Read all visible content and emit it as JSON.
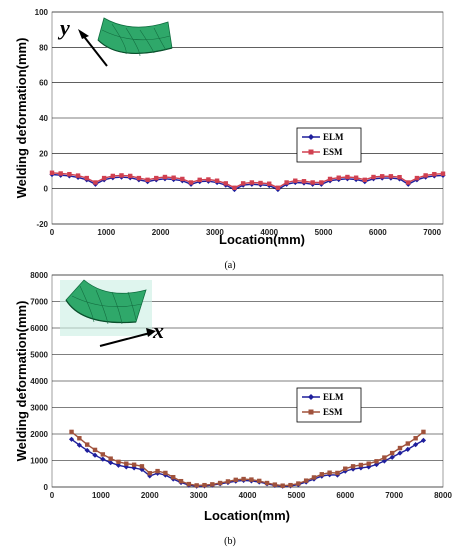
{
  "chart_data": [
    {
      "type": "line",
      "panel_label": "(a)",
      "xlabel": "Location(mm)",
      "ylabel": "Welding deformation(mm)",
      "xlim": [
        0,
        7200
      ],
      "ylim": [
        -20,
        100
      ],
      "xticks": [
        0,
        1000,
        2000,
        3000,
        4000,
        5000,
        6000,
        7000
      ],
      "yticks": [
        -20,
        0,
        20,
        40,
        60,
        80,
        100
      ],
      "inset_symbol": "y",
      "legend_position": "center-right",
      "x": [
        0,
        160,
        320,
        480,
        640,
        800,
        960,
        1120,
        1280,
        1440,
        1600,
        1760,
        1920,
        2080,
        2240,
        2400,
        2560,
        2720,
        2880,
        3040,
        3200,
        3360,
        3520,
        3680,
        3840,
        4000,
        4160,
        4320,
        4480,
        4640,
        4800,
        4960,
        5120,
        5280,
        5440,
        5600,
        5760,
        5920,
        6080,
        6240,
        6400,
        6560,
        6720,
        6880,
        7040,
        7200
      ],
      "series": [
        {
          "name": "ELM",
          "color": "#1f1f9c",
          "marker": "diamond",
          "values": [
            8,
            7.6,
            7.2,
            6.4,
            5,
            2.5,
            5,
            6.2,
            6.5,
            6.2,
            5,
            4,
            5,
            5.6,
            5.2,
            4.5,
            2.5,
            4,
            4.2,
            3.5,
            2,
            -0.5,
            2,
            2.5,
            2.2,
            1.8,
            -0.5,
            2.5,
            3.5,
            3.2,
            2.5,
            2.5,
            4.5,
            5.2,
            5.6,
            5.2,
            4,
            5.6,
            6,
            6,
            5.5,
            2.5,
            5,
            6.5,
            7.2,
            7.5
          ]
        },
        {
          "name": "ESM",
          "color": "#d04050",
          "marker": "square",
          "values": [
            9,
            8.6,
            8.2,
            7.4,
            6,
            3.5,
            6,
            7.2,
            7.5,
            7.2,
            6,
            5,
            6,
            6.6,
            6.2,
            5.5,
            3.5,
            5,
            5.2,
            4.5,
            3,
            0.5,
            3,
            3.5,
            3.2,
            2.8,
            0.5,
            3.5,
            4.5,
            4.2,
            3.5,
            3.5,
            5.5,
            6.2,
            6.6,
            6.2,
            5,
            6.6,
            7,
            7,
            6.5,
            3.5,
            6,
            7.5,
            8.2,
            8.5
          ]
        }
      ]
    },
    {
      "type": "line",
      "panel_label": "(b)",
      "xlabel": "Location(mm)",
      "ylabel": "Welding deformation(mm)",
      "xlim": [
        0,
        8000
      ],
      "ylim": [
        0,
        8000
      ],
      "xticks": [
        0,
        1000,
        2000,
        3000,
        4000,
        5000,
        6000,
        7000,
        8000
      ],
      "yticks": [
        0,
        1000,
        2000,
        3000,
        4000,
        5000,
        6000,
        7000,
        8000
      ],
      "inset_symbol": "x",
      "legend_position": "center-right",
      "x": [
        400,
        560,
        720,
        880,
        1040,
        1200,
        1360,
        1520,
        1680,
        1840,
        2000,
        2160,
        2320,
        2480,
        2640,
        2800,
        2960,
        3120,
        3280,
        3440,
        3600,
        3760,
        3920,
        4080,
        4240,
        4400,
        4560,
        4720,
        4880,
        5040,
        5200,
        5360,
        5520,
        5680,
        5840,
        6000,
        6160,
        6320,
        6480,
        6640,
        6800,
        6960,
        7120,
        7280,
        7440,
        7600
      ],
      "series": [
        {
          "name": "ELM",
          "color": "#1f1f9c",
          "marker": "diamond",
          "values": [
            1800,
            1580,
            1380,
            1200,
            1050,
            920,
            820,
            760,
            720,
            660,
            420,
            520,
            450,
            300,
            170,
            70,
            30,
            40,
            70,
            120,
            170,
            220,
            250,
            230,
            190,
            120,
            60,
            30,
            40,
            90,
            190,
            300,
            410,
            460,
            450,
            600,
            680,
            720,
            760,
            850,
            980,
            1120,
            1280,
            1420,
            1600,
            1760
          ]
        },
        {
          "name": "ESM",
          "color": "#a0523c",
          "marker": "square",
          "values": [
            2080,
            1840,
            1600,
            1400,
            1230,
            1070,
            950,
            880,
            840,
            780,
            520,
            600,
            530,
            370,
            220,
            110,
            60,
            70,
            100,
            150,
            210,
            270,
            300,
            280,
            230,
            150,
            90,
            50,
            70,
            130,
            240,
            360,
            480,
            540,
            530,
            690,
            780,
            830,
            880,
            970,
            1110,
            1280,
            1470,
            1640,
            1840,
            2080
          ]
        }
      ]
    }
  ]
}
